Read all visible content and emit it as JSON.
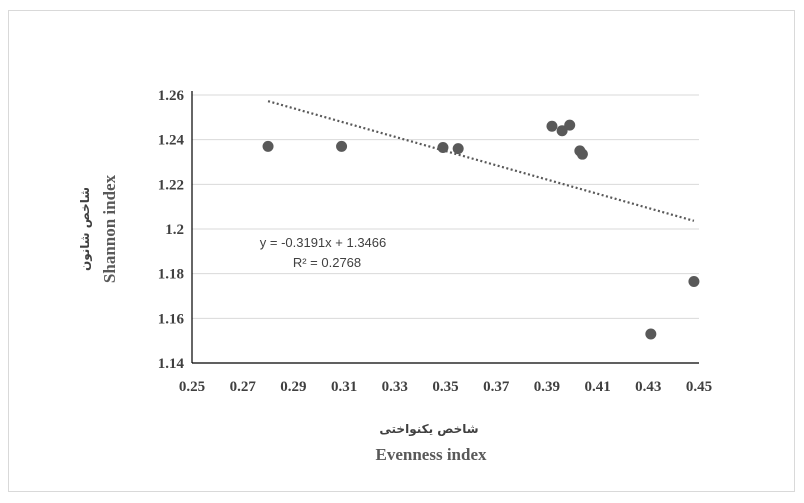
{
  "chart_data": {
    "type": "scatter",
    "xlabel_fa": "شاخص یکنواختی",
    "xlabel": "Evenness index",
    "ylabel_fa": "شاخص شانون",
    "ylabel": "Shannon index",
    "xlim": [
      0.25,
      0.45
    ],
    "ylim": [
      1.14,
      1.26
    ],
    "xticks": [
      "0.25",
      "0.27",
      "0.29",
      "0.31",
      "0.33",
      "0.35",
      "0.37",
      "0.39",
      "0.41",
      "0.43",
      "0.45"
    ],
    "yticks": [
      "1.14",
      "1.16",
      "1.18",
      "1.2",
      "1.22",
      "1.24",
      "1.26"
    ],
    "grid": "horizontal",
    "points": [
      {
        "x": 0.28,
        "y": 1.237
      },
      {
        "x": 0.309,
        "y": 1.237
      },
      {
        "x": 0.349,
        "y": 1.2365
      },
      {
        "x": 0.355,
        "y": 1.236
      },
      {
        "x": 0.392,
        "y": 1.246
      },
      {
        "x": 0.396,
        "y": 1.244
      },
      {
        "x": 0.399,
        "y": 1.2465
      },
      {
        "x": 0.403,
        "y": 1.235
      },
      {
        "x": 0.404,
        "y": 1.2335
      },
      {
        "x": 0.431,
        "y": 1.153
      },
      {
        "x": 0.448,
        "y": 1.1765
      }
    ],
    "trendline": {
      "type": "linear",
      "slope": -0.3191,
      "intercept": 1.3466,
      "x_range": [
        0.28,
        0.448
      ],
      "style": "dotted"
    },
    "equation": "y = -0.3191x + 1.3466",
    "r_squared": "R² = 0.2768",
    "colors": {
      "marker": "#595959",
      "trendline": "#595959",
      "grid": "#d9d9d9",
      "axis": "#000000"
    }
  }
}
